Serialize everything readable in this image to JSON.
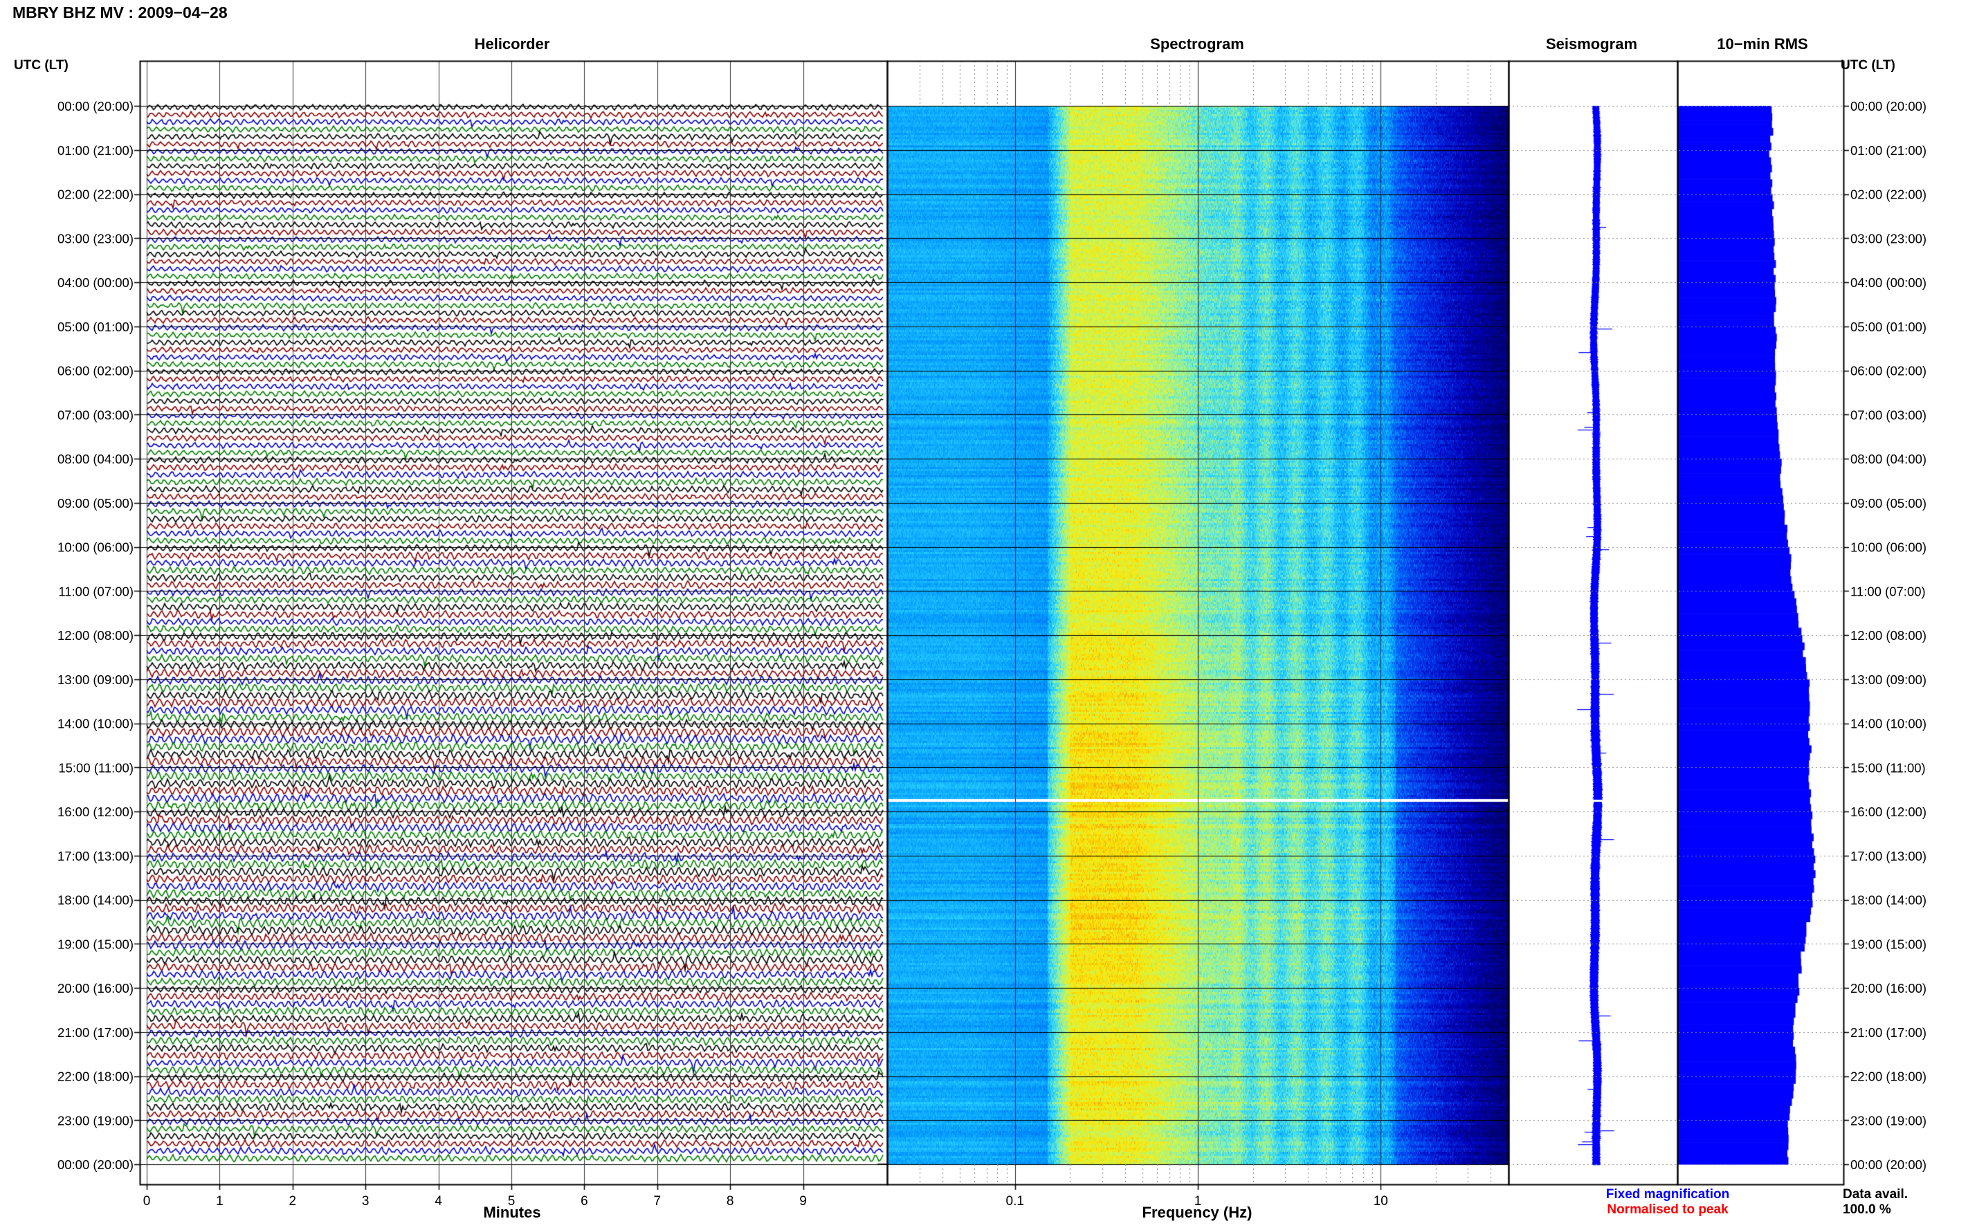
{
  "header": {
    "title": "MBRY BHZ MV : 2009−04−28",
    "utc_lt_left": "UTC (LT)",
    "utc_lt_right": "UTC (LT)"
  },
  "panels": {
    "helicorder": "Helicorder",
    "spectrogram": "Spectrogram",
    "seismogram": "Seismogram",
    "rms": "10−min RMS"
  },
  "footer": {
    "minutes_label": "Minutes",
    "frequency_label": "Frequency (Hz)",
    "fixed_magnification": "Fixed magnification",
    "normalised_to_peak": "Normalised to peak",
    "data_avail_label": "Data avail.",
    "data_avail_value": "100.0 %"
  },
  "colors": {
    "trace_palette": [
      "#000000",
      "#8b0000",
      "#0000cc",
      "#008000"
    ],
    "fixed_magnification": "#0000ff",
    "normalised_to_peak": "#ff0000",
    "seismogram_fill": "#0000ff",
    "rms_fill": "#0000ff",
    "gap_line": "#ffffff"
  },
  "chart_data": [
    {
      "type": "line",
      "panel": "Helicorder",
      "x_ticks": [
        "0",
        "1",
        "2",
        "3",
        "4",
        "5",
        "6",
        "7",
        "8",
        "9"
      ],
      "xlim": [
        0,
        10
      ],
      "time_labels": [
        "00:00 (20:00)",
        "01:00 (21:00)",
        "02:00 (22:00)",
        "03:00 (23:00)",
        "04:00 (00:00)",
        "05:00 (01:00)",
        "06:00 (02:00)",
        "07:00 (03:00)",
        "08:00 (04:00)",
        "09:00 (05:00)",
        "10:00 (06:00)",
        "11:00 (07:00)",
        "12:00 (08:00)",
        "13:00 (09:00)",
        "14:00 (10:00)",
        "15:00 (11:00)",
        "16:00 (12:00)",
        "17:00 (13:00)",
        "18:00 (14:00)",
        "19:00 (15:00)",
        "20:00 (16:00)",
        "21:00 (17:00)",
        "22:00 (18:00)",
        "23:00 (19:00)",
        "00:00 (20:00)"
      ],
      "traces_per_hour": 6,
      "trace_minutes": 10,
      "relative_amplitude_by_hour": [
        1.0,
        1.0,
        1.0,
        1.0,
        1.0,
        1.0,
        1.0,
        1.0,
        1.1,
        1.1,
        1.2,
        1.2,
        1.3,
        1.4,
        1.5,
        1.5,
        1.5,
        1.5,
        1.5,
        1.4,
        1.3,
        1.3,
        1.3,
        1.2
      ]
    },
    {
      "type": "heatmap",
      "panel": "Spectrogram",
      "x_scale": "log",
      "xlim": [
        0.02,
        50
      ],
      "x_tick_labels": [
        "0.1",
        "1",
        "10"
      ],
      "gap_hour": 15.75
    },
    {
      "type": "line",
      "panel": "Seismogram",
      "gap_hour": 15.75
    },
    {
      "type": "bar",
      "panel": "10-min RMS",
      "bins_per_hour": 6,
      "relative_rms_by_hour": [
        0.56,
        0.55,
        0.56,
        0.57,
        0.58,
        0.58,
        0.58,
        0.59,
        0.62,
        0.64,
        0.69,
        0.72,
        0.79,
        0.84,
        0.84,
        0.84,
        0.85,
        0.88,
        0.86,
        0.79,
        0.75,
        0.72,
        0.74,
        0.68
      ]
    }
  ]
}
